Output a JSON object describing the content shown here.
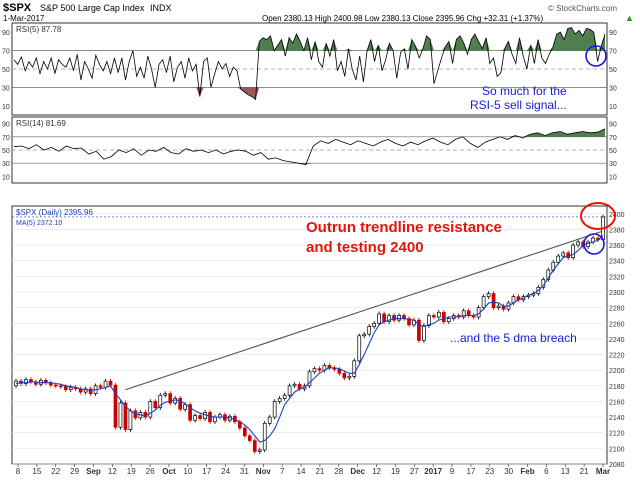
{
  "header": {
    "symbol": "$SPX",
    "name": "S&P 500 Large Cap Index",
    "exchange": "INDX",
    "date": "1-Mar-2017",
    "ohlc": "Open 2380.13  High 2400.98  Low 2380.13  Close 2395.96  Chg +32.31 (+1.37%)",
    "trend_arrow": "▲",
    "watermark": "© StockCharts.com"
  },
  "colors": {
    "bull_candle": "#000000",
    "bear_candle": "#cc0000",
    "ma_line": "#1f3fbf",
    "trendline": "#555555",
    "rsi_line": "#000000",
    "rsi_overbought_fill": "#4f7f4f",
    "rsi_oversold_fill": "#9a5a5a",
    "annotation_red": "#e8140c",
    "annotation_blue": "#1a1ad4"
  },
  "chart_data": [
    {
      "type": "line",
      "title": "RSI(5) 87.78",
      "ylim": [
        0,
        100
      ],
      "ticks": [
        "90",
        "70",
        "50",
        "30",
        "10"
      ],
      "reference_lines": [
        70,
        50,
        30
      ],
      "x": [
        0,
        1,
        2,
        3,
        4,
        5,
        6,
        7,
        8,
        9,
        10,
        11,
        12,
        13,
        14,
        15,
        16,
        17,
        18,
        19,
        20,
        21,
        22,
        23,
        24,
        25,
        26,
        27,
        28,
        29,
        30,
        31,
        32,
        33,
        34,
        35,
        36,
        37,
        38,
        39,
        40,
        41,
        42,
        43,
        44,
        45,
        46,
        47,
        48,
        49,
        50,
        51,
        52,
        53,
        54,
        55,
        56,
        57,
        58,
        59,
        60,
        61,
        62,
        63,
        64,
        65,
        66,
        67,
        68,
        69,
        70,
        71,
        72,
        73,
        74,
        75,
        76,
        77,
        78,
        79,
        80,
        81,
        82,
        83,
        84,
        85,
        86,
        87,
        88,
        89,
        90,
        91,
        92,
        93,
        94,
        95,
        96,
        97,
        98,
        99,
        100,
        101,
        102,
        103,
        104,
        105,
        106,
        107,
        108,
        109,
        110,
        111,
        112,
        113,
        114,
        115,
        116,
        117,
        118,
        119,
        120,
        121,
        122,
        123,
        124,
        125,
        126,
        127,
        128,
        129,
        130,
        131,
        132,
        133,
        134,
        135,
        136,
        137,
        138,
        139,
        140,
        141,
        142,
        143,
        144,
        145,
        146,
        147,
        148,
        149,
        150,
        151,
        152,
        153,
        154,
        155,
        156,
        157,
        158,
        159
      ],
      "values": [
        60,
        55,
        63,
        48,
        58,
        52,
        62,
        45,
        58,
        50,
        62,
        45,
        60,
        55,
        52,
        62,
        48,
        66,
        38,
        58,
        50,
        40,
        65,
        55,
        48,
        58,
        45,
        62,
        46,
        62,
        38,
        58,
        70,
        42,
        52,
        40,
        64,
        50,
        30,
        55,
        60,
        46,
        64,
        36,
        52,
        58,
        40,
        62,
        48,
        55,
        20,
        58,
        62,
        30,
        45,
        58,
        50,
        56,
        42,
        52,
        48,
        28,
        25,
        22,
        20,
        17,
        80,
        84,
        82,
        86,
        70,
        76,
        82,
        64,
        84,
        78,
        88,
        80,
        70,
        84,
        60,
        80,
        58,
        52,
        78,
        64,
        82,
        48,
        58,
        42,
        72,
        50,
        38,
        64,
        36,
        70,
        82,
        58,
        76,
        48,
        60,
        78,
        70,
        40,
        68,
        72,
        50,
        82,
        75,
        62,
        72,
        86,
        82,
        34,
        48,
        62,
        74,
        80,
        56,
        82,
        86,
        78,
        66,
        82,
        88,
        80,
        72,
        84,
        56,
        62,
        42,
        46,
        72,
        80,
        66,
        56,
        84,
        64,
        50,
        76,
        56,
        82,
        62,
        56,
        66,
        74,
        88,
        90,
        82,
        94,
        95,
        88,
        92,
        86,
        94,
        93,
        90,
        58,
        75,
        88
      ],
      "series": [
        {
          "name": "RSI(5)"
        }
      ]
    },
    {
      "type": "line",
      "title": "RSI(14) 81.69",
      "ylim": [
        0,
        100
      ],
      "ticks": [
        "90",
        "70",
        "50",
        "30",
        "10"
      ],
      "reference_lines": [
        70,
        50,
        30
      ],
      "x": [
        0,
        1,
        2,
        3,
        4,
        5,
        6,
        7,
        8,
        9,
        10,
        11,
        12,
        13,
        14,
        15,
        16,
        17,
        18,
        19,
        20,
        21,
        22,
        23,
        24,
        25,
        26,
        27,
        28,
        29,
        30,
        31,
        32,
        33,
        34,
        35,
        36,
        37,
        38,
        39,
        40,
        41,
        42,
        43,
        44,
        45,
        46,
        47,
        48,
        49,
        50,
        51,
        52,
        53,
        54,
        55,
        56,
        57,
        58,
        59,
        60,
        61,
        62,
        63,
        64,
        65,
        66,
        67,
        68,
        69,
        70,
        71,
        72,
        73,
        74,
        75,
        76,
        77,
        78,
        79
      ],
      "values": [
        55,
        56,
        52,
        58,
        50,
        54,
        48,
        56,
        52,
        53,
        44,
        48,
        36,
        40,
        50,
        46,
        52,
        42,
        50,
        48,
        54,
        46,
        44,
        52,
        48,
        50,
        46,
        50,
        44,
        48,
        50,
        48,
        42,
        46,
        36,
        38,
        34,
        32,
        30,
        28,
        56,
        64,
        60,
        66,
        62,
        58,
        64,
        60,
        56,
        62,
        66,
        60,
        56,
        62,
        58,
        64,
        68,
        62,
        58,
        66,
        70,
        60,
        54,
        62,
        66,
        70,
        66,
        72,
        68,
        74,
        76,
        72,
        76,
        78,
        74,
        76,
        78,
        76,
        77,
        82
      ],
      "series": [
        {
          "name": "RSI(14)"
        }
      ]
    },
    {
      "type": "candlestick",
      "title": "$SPX (Daily) 2395.96",
      "legend": [
        "MA(5) 2372.10"
      ],
      "ylim": [
        2080,
        2410
      ],
      "yticks": [
        "2400",
        "2380",
        "2360",
        "2340",
        "2320",
        "2300",
        "2280",
        "2260",
        "2240",
        "2220",
        "2200",
        "2180",
        "2160",
        "2140",
        "2120",
        "2100",
        "2080"
      ],
      "xlabels": [
        "8",
        "15",
        "22",
        "29",
        "Sep",
        "12",
        "19",
        "26",
        "Oct",
        "10",
        "17",
        "24",
        "31",
        "Nov",
        "7",
        "14",
        "21",
        "28",
        "Dec",
        "12",
        "19",
        "27",
        "2017",
        "9",
        "17",
        "23",
        "30",
        "Feb",
        "6",
        "13",
        "21",
        "Mar"
      ],
      "candles": [
        {
          "o": 2180,
          "c": 2186
        },
        {
          "o": 2186,
          "c": 2183
        },
        {
          "o": 2183,
          "c": 2188
        },
        {
          "o": 2188,
          "c": 2185
        },
        {
          "o": 2185,
          "c": 2182
        },
        {
          "o": 2182,
          "c": 2187
        },
        {
          "o": 2187,
          "c": 2184
        },
        {
          "o": 2184,
          "c": 2181
        },
        {
          "o": 2181,
          "c": 2180
        },
        {
          "o": 2180,
          "c": 2179
        },
        {
          "o": 2179,
          "c": 2175
        },
        {
          "o": 2175,
          "c": 2178
        },
        {
          "o": 2178,
          "c": 2176
        },
        {
          "o": 2176,
          "c": 2172
        },
        {
          "o": 2172,
          "c": 2176
        },
        {
          "o": 2176,
          "c": 2170
        },
        {
          "o": 2170,
          "c": 2180
        },
        {
          "o": 2180,
          "c": 2178
        },
        {
          "o": 2178,
          "c": 2186
        },
        {
          "o": 2186,
          "c": 2181
        },
        {
          "o": 2181,
          "c": 2127
        },
        {
          "o": 2127,
          "c": 2158
        },
        {
          "o": 2158,
          "c": 2124
        },
        {
          "o": 2124,
          "c": 2148
        },
        {
          "o": 2148,
          "c": 2139
        },
        {
          "o": 2139,
          "c": 2146
        },
        {
          "o": 2146,
          "c": 2140
        },
        {
          "o": 2140,
          "c": 2160
        },
        {
          "o": 2160,
          "c": 2152
        },
        {
          "o": 2152,
          "c": 2168
        },
        {
          "o": 2168,
          "c": 2170
        },
        {
          "o": 2170,
          "c": 2158
        },
        {
          "o": 2158,
          "c": 2164
        },
        {
          "o": 2164,
          "c": 2150
        },
        {
          "o": 2150,
          "c": 2156
        },
        {
          "o": 2156,
          "c": 2136
        },
        {
          "o": 2136,
          "c": 2142
        },
        {
          "o": 2142,
          "c": 2138
        },
        {
          "o": 2138,
          "c": 2146
        },
        {
          "o": 2146,
          "c": 2134
        },
        {
          "o": 2134,
          "c": 2140
        },
        {
          "o": 2140,
          "c": 2143
        },
        {
          "o": 2143,
          "c": 2136
        },
        {
          "o": 2136,
          "c": 2141
        },
        {
          "o": 2141,
          "c": 2134
        },
        {
          "o": 2134,
          "c": 2126
        },
        {
          "o": 2126,
          "c": 2116
        },
        {
          "o": 2116,
          "c": 2110
        },
        {
          "o": 2110,
          "c": 2096
        },
        {
          "o": 2096,
          "c": 2098
        },
        {
          "o": 2098,
          "c": 2132
        },
        {
          "o": 2132,
          "c": 2140
        },
        {
          "o": 2140,
          "c": 2160
        },
        {
          "o": 2160,
          "c": 2164
        },
        {
          "o": 2164,
          "c": 2168
        },
        {
          "o": 2168,
          "c": 2180
        },
        {
          "o": 2180,
          "c": 2182
        },
        {
          "o": 2182,
          "c": 2176
        },
        {
          "o": 2176,
          "c": 2180
        },
        {
          "o": 2180,
          "c": 2198
        },
        {
          "o": 2198,
          "c": 2202
        },
        {
          "o": 2202,
          "c": 2200
        },
        {
          "o": 2200,
          "c": 2206
        },
        {
          "o": 2206,
          "c": 2203
        },
        {
          "o": 2203,
          "c": 2201
        },
        {
          "o": 2201,
          "c": 2196
        },
        {
          "o": 2196,
          "c": 2190
        },
        {
          "o": 2190,
          "c": 2192
        },
        {
          "o": 2192,
          "c": 2212
        },
        {
          "o": 2212,
          "c": 2244
        },
        {
          "o": 2244,
          "c": 2246
        },
        {
          "o": 2246,
          "c": 2256
        },
        {
          "o": 2256,
          "c": 2260
        },
        {
          "o": 2260,
          "c": 2272
        },
        {
          "o": 2272,
          "c": 2262
        },
        {
          "o": 2262,
          "c": 2270
        },
        {
          "o": 2270,
          "c": 2264
        },
        {
          "o": 2264,
          "c": 2270
        },
        {
          "o": 2270,
          "c": 2266
        },
        {
          "o": 2266,
          "c": 2258
        },
        {
          "o": 2258,
          "c": 2264
        },
        {
          "o": 2264,
          "c": 2238
        },
        {
          "o": 2238,
          "c": 2257
        },
        {
          "o": 2257,
          "c": 2270
        },
        {
          "o": 2270,
          "c": 2268
        },
        {
          "o": 2268,
          "c": 2274
        },
        {
          "o": 2274,
          "c": 2262
        },
        {
          "o": 2262,
          "c": 2266
        },
        {
          "o": 2266,
          "c": 2270
        },
        {
          "o": 2270,
          "c": 2268
        },
        {
          "o": 2268,
          "c": 2276
        },
        {
          "o": 2276,
          "c": 2270
        },
        {
          "o": 2270,
          "c": 2268
        },
        {
          "o": 2268,
          "c": 2280
        },
        {
          "o": 2280,
          "c": 2294
        },
        {
          "o": 2294,
          "c": 2298
        },
        {
          "o": 2298,
          "c": 2280
        },
        {
          "o": 2280,
          "c": 2282
        },
        {
          "o": 2282,
          "c": 2278
        },
        {
          "o": 2278,
          "c": 2286
        },
        {
          "o": 2286,
          "c": 2294
        },
        {
          "o": 2294,
          "c": 2290
        },
        {
          "o": 2290,
          "c": 2294
        },
        {
          "o": 2294,
          "c": 2296
        },
        {
          "o": 2296,
          "c": 2298
        },
        {
          "o": 2298,
          "c": 2306
        },
        {
          "o": 2306,
          "c": 2316
        },
        {
          "o": 2316,
          "c": 2328
        },
        {
          "o": 2328,
          "c": 2338
        },
        {
          "o": 2338,
          "c": 2346
        },
        {
          "o": 2346,
          "c": 2350
        },
        {
          "o": 2350,
          "c": 2344
        },
        {
          "o": 2344,
          "c": 2360
        },
        {
          "o": 2360,
          "c": 2364
        },
        {
          "o": 2364,
          "c": 2358
        },
        {
          "o": 2358,
          "c": 2364
        },
        {
          "o": 2364,
          "c": 2369
        },
        {
          "o": 2369,
          "c": 2367
        },
        {
          "o": 2367,
          "c": 2396
        }
      ],
      "ma5": [
        2183,
        2184,
        2184,
        2185,
        2185,
        2184,
        2184,
        2184,
        2183,
        2182,
        2180,
        2179,
        2178,
        2176,
        2175,
        2174,
        2175,
        2176,
        2178,
        2180,
        2170,
        2162,
        2154,
        2148,
        2144,
        2143,
        2141,
        2145,
        2149,
        2155,
        2159,
        2160,
        2162,
        2161,
        2157,
        2152,
        2148,
        2145,
        2143,
        2141,
        2140,
        2140,
        2140,
        2139,
        2137,
        2134,
        2130,
        2124,
        2116,
        2108,
        2110,
        2116,
        2125,
        2140,
        2156,
        2164,
        2172,
        2176,
        2178,
        2184,
        2190,
        2196,
        2200,
        2203,
        2203,
        2202,
        2199,
        2196,
        2196,
        2207,
        2220,
        2234,
        2248,
        2258,
        2262,
        2264,
        2266,
        2266,
        2266,
        2265,
        2264,
        2258,
        2256,
        2258,
        2260,
        2264,
        2266,
        2268,
        2268,
        2268,
        2270,
        2270,
        2270,
        2272,
        2278,
        2286,
        2287,
        2286,
        2282,
        2282,
        2286,
        2290,
        2292,
        2296,
        2298,
        2302,
        2308,
        2318,
        2328,
        2336,
        2344,
        2346,
        2348,
        2353,
        2360,
        2362,
        2364,
        2366,
        2372
      ],
      "trendline": {
        "from": 2175,
        "to": 2378
      }
    }
  ],
  "annotations": {
    "rsi_note_1": "So much for the",
    "rsi_note_2": "RSI-5 sell signal...",
    "price_note_1": "Outrun trendline resistance",
    "price_note_2": "and testing 2400",
    "ma_note": "...and the 5 dma breach"
  }
}
